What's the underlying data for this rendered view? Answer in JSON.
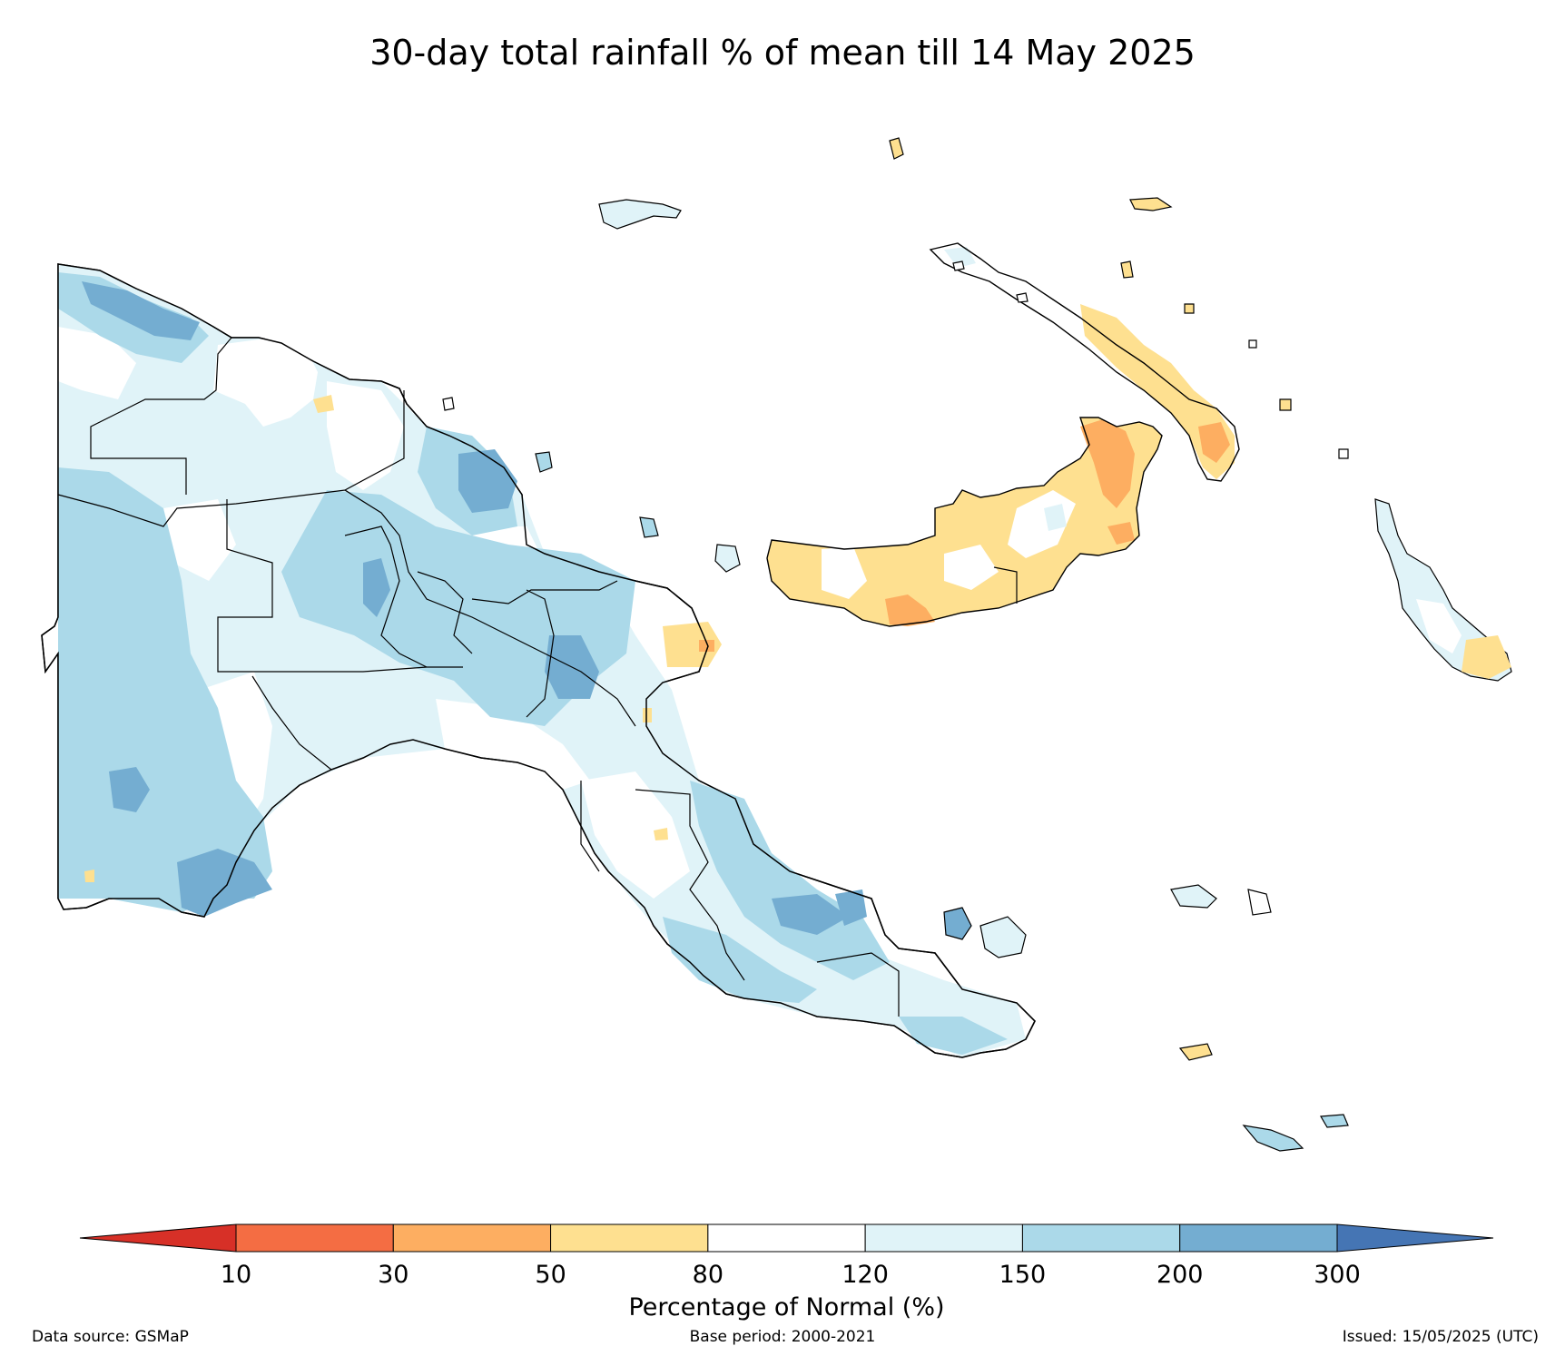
{
  "title": "30-day total rainfall % of mean till 14 May 2025",
  "colorbar": {
    "label": "Percentage of Normal (%)",
    "ticks": [
      "10",
      "30",
      "50",
      "80",
      "120",
      "150",
      "200",
      "300"
    ],
    "under_color": "#d73027",
    "over_color": "#4575b4",
    "bins": [
      {
        "range": "10-30",
        "color": "#f46d43"
      },
      {
        "range": "30-50",
        "color": "#fdae61"
      },
      {
        "range": "50-80",
        "color": "#fee090"
      },
      {
        "range": "80-120",
        "color": "#ffffff"
      },
      {
        "range": "120-150",
        "color": "#e0f3f8"
      },
      {
        "range": "150-200",
        "color": "#abd9e9"
      },
      {
        "range": "200-300",
        "color": "#74add1"
      }
    ]
  },
  "footer": {
    "data_source": "Data source: GSMaP",
    "base_period": "Base period: 2000-2021",
    "issued": "Issued: 15/05/2025 (UTC)"
  },
  "legend_colors": {
    "dry_yellow": "#fee090",
    "dry_orange": "#fdae61",
    "wet_light": "#e0f3f8",
    "wet_mid": "#abd9e9",
    "wet_dark": "#74add1"
  }
}
